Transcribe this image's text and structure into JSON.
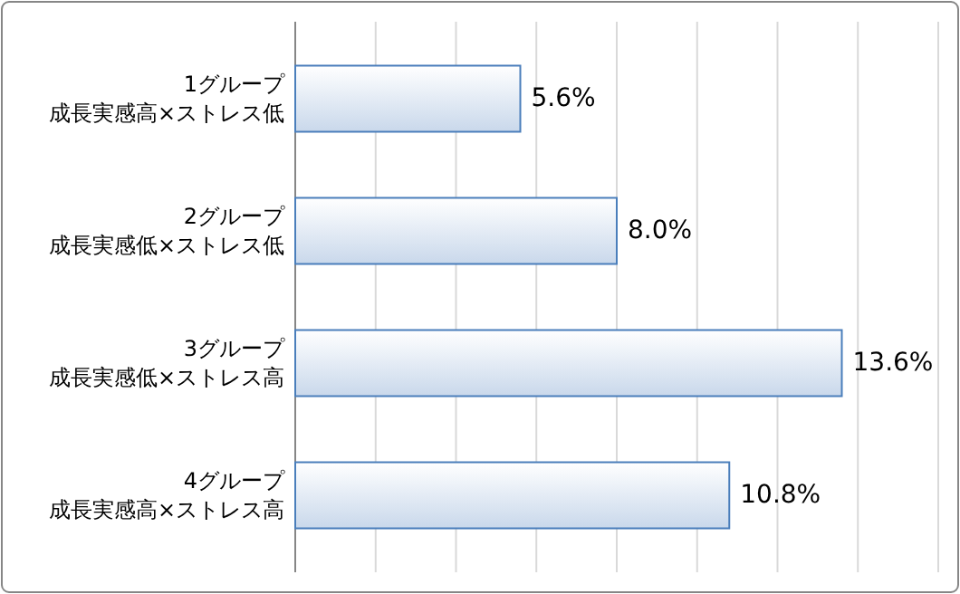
{
  "chart_data": {
    "type": "bar",
    "orientation": "horizontal",
    "categories": [
      "1グループ成長実感高×ストレス低",
      "2グループ成長実感低×ストレス低",
      "3グループ成長実感低×ストレス高",
      "4グループ成長実感高×ストレス高"
    ],
    "values": [
      5.6,
      8.0,
      13.6,
      10.8
    ],
    "color": "#4a7ebb",
    "value_labels": [
      "5.6%",
      "8.0%",
      "13.6%",
      "10.8%"
    ],
    "xlim": [
      0,
      16
    ],
    "xticks": [
      {
        "value": 0,
        "label": null
      },
      {
        "value": 2,
        "label": null
      },
      {
        "value": 4,
        "label": null
      },
      {
        "value": 6,
        "label": null
      },
      {
        "value": 8,
        "label": null
      },
      {
        "value": 10,
        "label": null
      },
      {
        "value": 12,
        "label": null
      },
      {
        "value": 14,
        "label": null
      },
      {
        "value": 16,
        "label": null
      }
    ],
    "grid": "x",
    "tick_labels": "y"
  }
}
